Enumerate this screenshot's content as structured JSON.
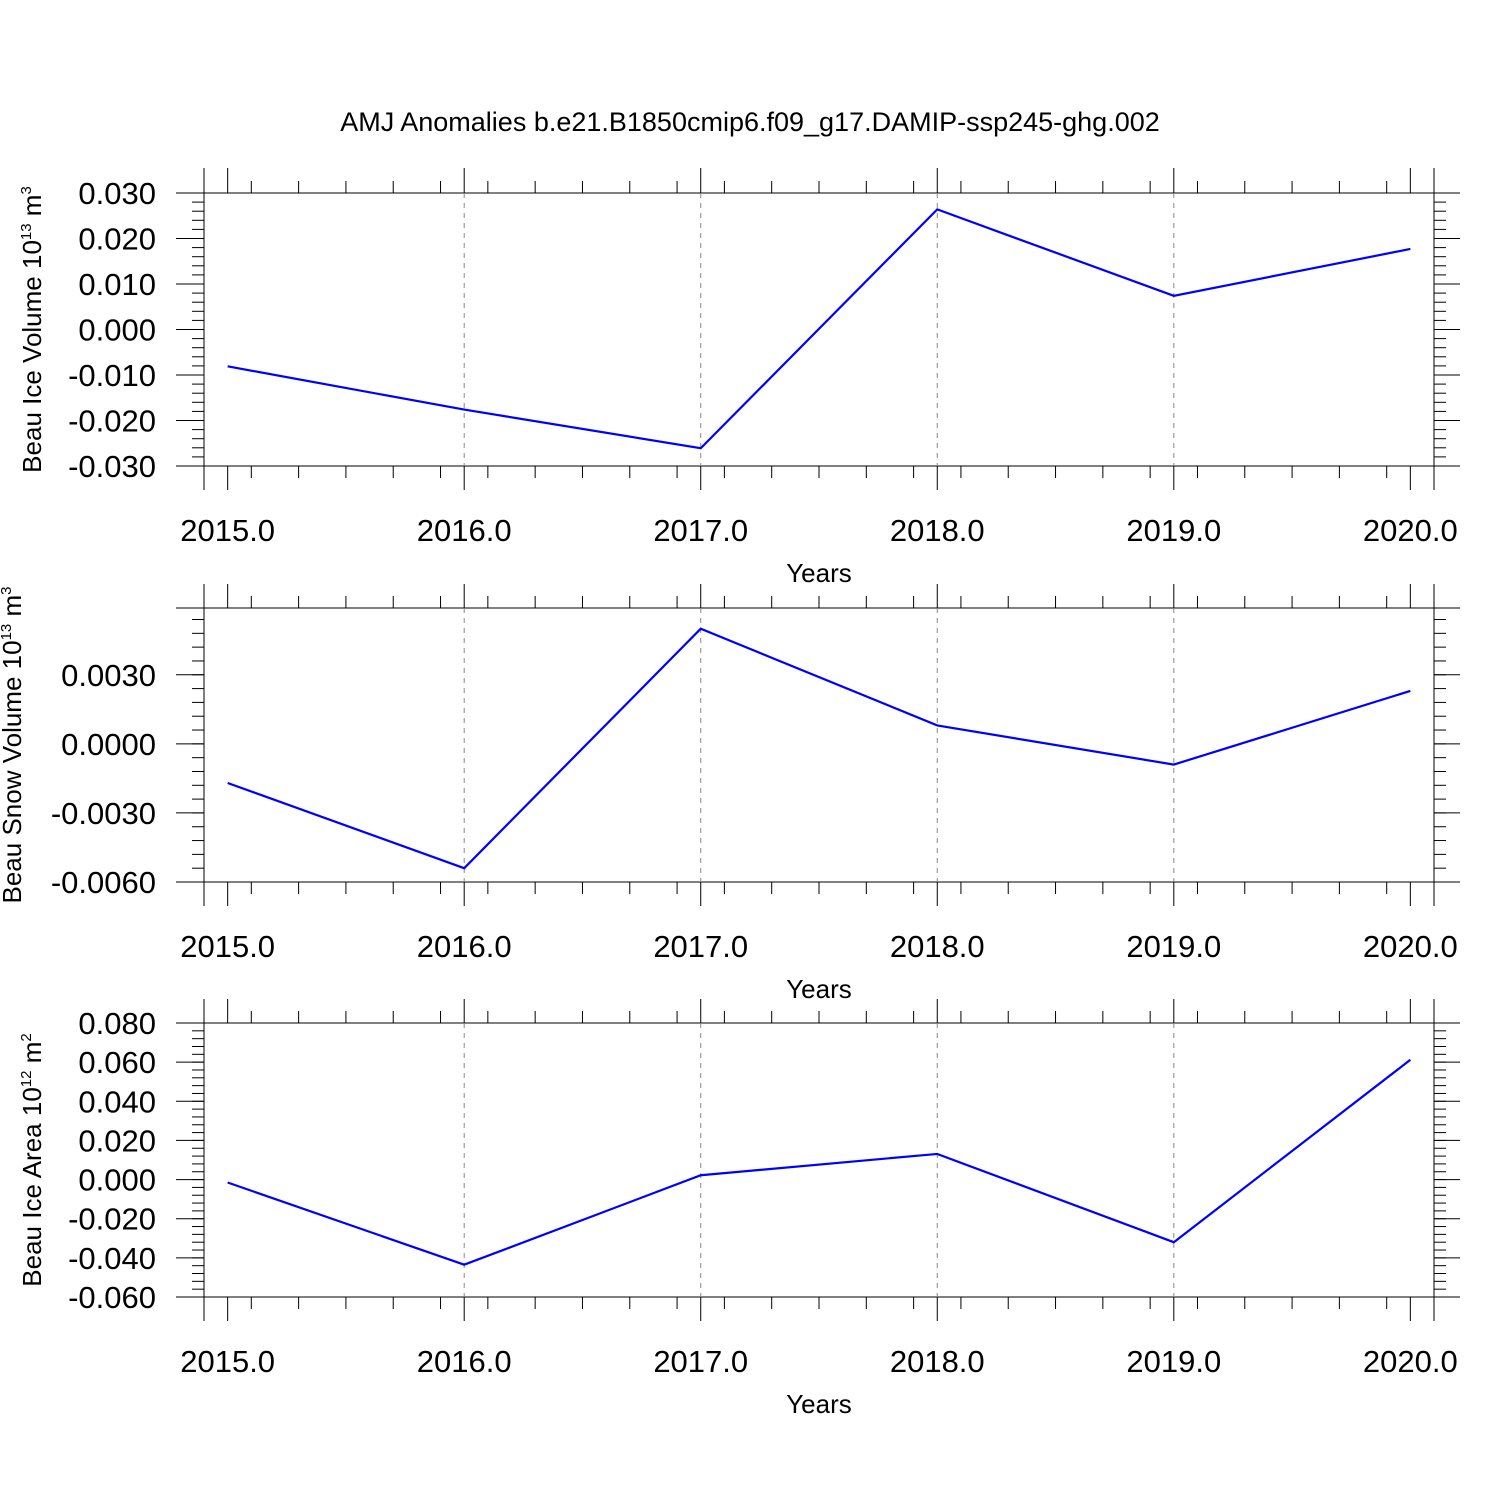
{
  "title": "AMJ Anomalies b.e21.B1850cmip6.f09_g17.DAMIP-ssp245-ghg.002",
  "chart_data": [
    {
      "type": "line",
      "title": "AMJ Anomalies b.e21.B1850cmip6.f09_g17.DAMIP-ssp245-ghg.002",
      "ylabel_main": "Beau Ice Volume 10",
      "ylabel_exp": "13",
      "ylabel_unit": " m",
      "ylabel_unit_exp": "3",
      "xlabel": "Years",
      "x": [
        2015,
        2016,
        2017,
        2018,
        2019,
        2020
      ],
      "xticks": [
        "2015.0",
        "2016.0",
        "2017.0",
        "2018.0",
        "2019.0",
        "2020.0"
      ],
      "xlim": [
        2014.9,
        2020.1
      ],
      "ylim": [
        -0.03,
        0.03
      ],
      "yticks": [
        0.03,
        0.02,
        0.01,
        0.0,
        -0.01,
        -0.02,
        -0.03
      ],
      "ytick_labels": [
        "0.030",
        "0.020",
        "0.010",
        "0.000",
        "-0.010",
        "-0.020",
        "-0.030"
      ],
      "y_minor_step": 0.002,
      "series": [
        {
          "values": [
            -0.0081,
            -0.0176,
            -0.0261,
            0.0264,
            0.0074,
            0.0177
          ],
          "color": "#0000ff"
        }
      ],
      "grid": "dashed vertical at x ticks"
    },
    {
      "type": "line",
      "ylabel_main": "Beau Snow Volume 10",
      "ylabel_exp": "13",
      "ylabel_unit": " m",
      "ylabel_unit_exp": "3",
      "xlabel": "Years",
      "x": [
        2015,
        2016,
        2017,
        2018,
        2019,
        2020
      ],
      "xticks": [
        "2015.0",
        "2016.0",
        "2017.0",
        "2018.0",
        "2019.0",
        "2020.0"
      ],
      "xlim": [
        2014.9,
        2020.1
      ],
      "ylim": [
        -0.006,
        0.0059
      ],
      "yticks": [
        0.003,
        0.0,
        -0.003,
        -0.006
      ],
      "ytick_labels": [
        "0.0030",
        "0.0000",
        "-0.0030",
        "-0.0060"
      ],
      "y_minor_step": 0.0006,
      "series": [
        {
          "values": [
            -0.0017,
            -0.0054,
            0.005,
            0.0008,
            -0.0009,
            0.0023
          ],
          "color": "#0000ff"
        }
      ],
      "grid": "dashed vertical at x ticks"
    },
    {
      "type": "line",
      "ylabel_main": "Beau Ice Area 10",
      "ylabel_exp": "12",
      "ylabel_unit": " m",
      "ylabel_unit_exp": "2",
      "xlabel": "Years",
      "x": [
        2015,
        2016,
        2017,
        2018,
        2019,
        2020
      ],
      "xticks": [
        "2015.0",
        "2016.0",
        "2017.0",
        "2018.0",
        "2019.0",
        "2020.0"
      ],
      "xlim": [
        2014.9,
        2020.1
      ],
      "ylim": [
        -0.06,
        0.08
      ],
      "yticks": [
        0.08,
        0.06,
        0.04,
        0.02,
        0.0,
        -0.02,
        -0.04,
        -0.06
      ],
      "ytick_labels": [
        "0.080",
        "0.060",
        "0.040",
        "0.020",
        "0.000",
        "-0.020",
        "-0.040",
        "-0.060"
      ],
      "y_minor_step": 0.004,
      "series": [
        {
          "values": [
            -0.0015,
            -0.0435,
            0.0022,
            0.0131,
            -0.032,
            0.0612
          ],
          "color": "#0000ff"
        }
      ],
      "grid": "dashed vertical at x ticks"
    }
  ]
}
